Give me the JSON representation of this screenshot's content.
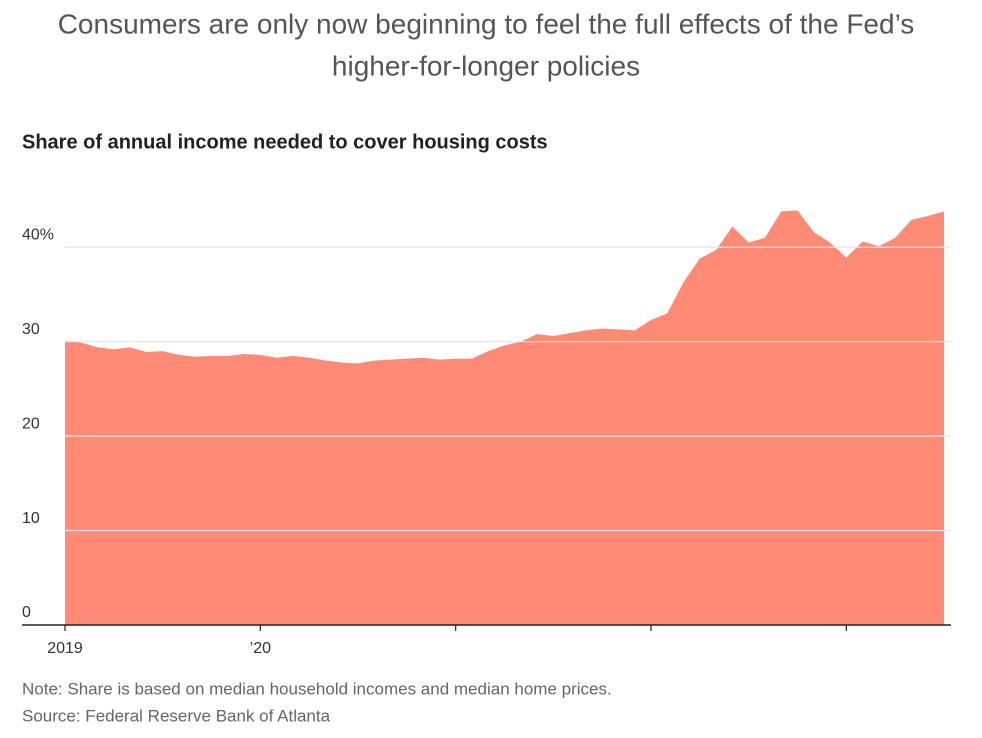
{
  "chart_data": {
    "type": "area",
    "title": [
      "Consumers are only now beginning to feel the full effects of the Fed’s",
      "higher-for-longer policies"
    ],
    "subtitle": "Share of annual income needed to cover housing costs",
    "note": "Note: Share is based on median household incomes and median home prices.",
    "source": "Source: Federal Reserve Bank of Atlanta",
    "categories": [
      "2019",
      null,
      null,
      null,
      null,
      null,
      null,
      null,
      null,
      null,
      null,
      null,
      "’20",
      null,
      null,
      null,
      null,
      null,
      null,
      null,
      null,
      null,
      null,
      null,
      null,
      null,
      null,
      null,
      null,
      null,
      null,
      null,
      null,
      null,
      null,
      null,
      null,
      null,
      null,
      null,
      null,
      null,
      null,
      null,
      null,
      null,
      null,
      null,
      null,
      null,
      null,
      null,
      null,
      null,
      null
    ],
    "values": [
      30.1,
      29.9,
      29.4,
      29.2,
      29.4,
      28.9,
      29.0,
      28.6,
      28.4,
      28.5,
      28.5,
      28.7,
      28.6,
      28.3,
      28.5,
      28.3,
      28.0,
      27.8,
      27.7,
      28.0,
      28.1,
      28.2,
      28.3,
      28.1,
      28.2,
      28.2,
      29.0,
      29.6,
      30.0,
      30.8,
      30.6,
      30.9,
      31.2,
      31.4,
      31.3,
      31.2,
      32.3,
      33.0,
      36.3,
      38.8,
      39.7,
      42.2,
      40.5,
      41.0,
      43.8,
      43.9,
      41.6,
      40.5,
      38.9,
      40.6,
      40.1,
      41.0,
      42.9,
      43.3,
      43.8
    ],
    "color": "#ff8a75",
    "ylim": [
      0,
      45
    ],
    "yticks": [
      0,
      10,
      20,
      30,
      {
        "value": 40,
        "label": "40%"
      }
    ],
    "grid": true
  }
}
